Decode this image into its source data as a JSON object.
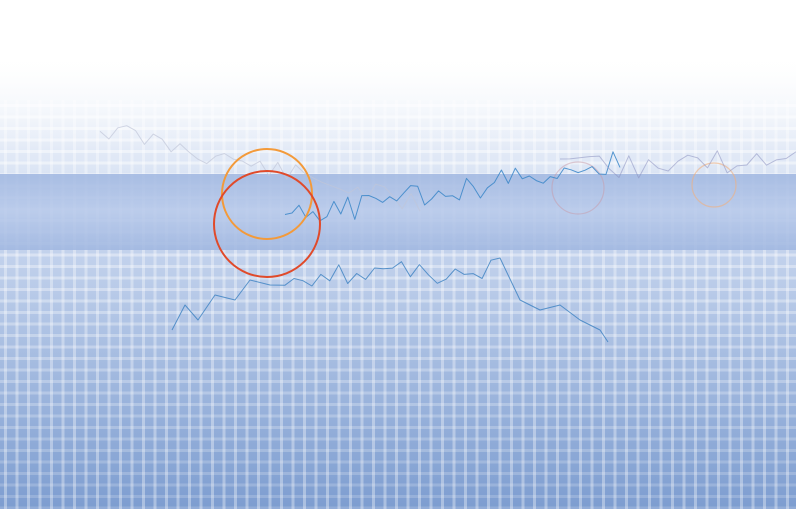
{
  "scene": {
    "kind": "decorative-background",
    "colors": {
      "sky_top": "#ffffff",
      "sky_bottom": "#7d9dd0",
      "band": "#a6bde3",
      "grid": "#ffffff",
      "warm_line": "#e8532a",
      "gold_line": "#f4b73e",
      "teal_line": "#3a7fc0",
      "green_line": "#4a8a5a",
      "faint_line": "#9aa0c8"
    }
  }
}
